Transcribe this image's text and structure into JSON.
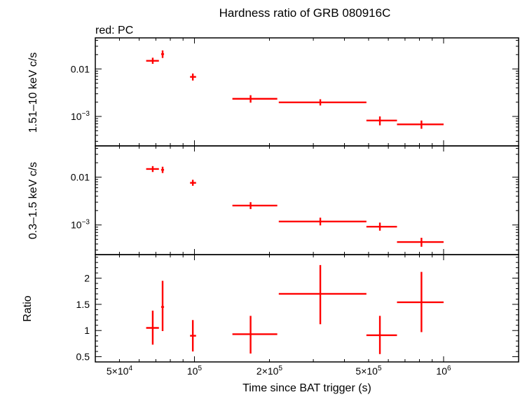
{
  "chart_data": {
    "type": "scatter",
    "title": "Hardness ratio of GRB 080916C",
    "subtitle": "red: PC",
    "xlabel": "Time since BAT trigger (s)",
    "xscale": "log",
    "xlim": [
      40000,
      2000000
    ],
    "x_ticks": [
      {
        "value": 50000,
        "mant": "5×10",
        "exp": "4"
      },
      {
        "value": 100000,
        "mant": "10",
        "exp": "5"
      },
      {
        "value": 200000,
        "mant": "2×10",
        "exp": "5"
      },
      {
        "value": 500000,
        "mant": "5×10",
        "exp": "5"
      },
      {
        "value": 1000000,
        "mant": "10",
        "exp": "6"
      }
    ],
    "panels": [
      {
        "ylabel": "1.51–10 keV c/s",
        "yscale": "log",
        "ylim": [
          0.00024,
          0.045
        ],
        "y_ticks": [
          {
            "value": 0.01,
            "text": "0.01"
          },
          {
            "value": 0.001,
            "mant": "10",
            "exp": "−3"
          }
        ],
        "points": [
          {
            "x": 68000,
            "xlo": 64000,
            "xhi": 72000,
            "y": 0.0148,
            "ylo": 0.0128,
            "yhi": 0.0172
          },
          {
            "x": 74500,
            "xlo": 73500,
            "xhi": 75500,
            "y": 0.0205,
            "ylo": 0.017,
            "yhi": 0.0245
          },
          {
            "x": 98500,
            "xlo": 96000,
            "xhi": 101500,
            "y": 0.0068,
            "ylo": 0.0057,
            "yhi": 0.008
          },
          {
            "x": 168000,
            "xlo": 142000,
            "xhi": 215000,
            "y": 0.00235,
            "ylo": 0.00195,
            "yhi": 0.0028
          },
          {
            "x": 320000,
            "xlo": 218000,
            "xhi": 490000,
            "y": 0.00198,
            "ylo": 0.0017,
            "yhi": 0.0023
          },
          {
            "x": 555000,
            "xlo": 490000,
            "xhi": 650000,
            "y": 0.00082,
            "ylo": 0.00065,
            "yhi": 0.001
          },
          {
            "x": 815000,
            "xlo": 650000,
            "xhi": 1000000,
            "y": 0.00068,
            "ylo": 0.00055,
            "yhi": 0.00082
          }
        ]
      },
      {
        "ylabel": "0.3–1.5 keV c/s",
        "yscale": "log",
        "ylim": [
          0.00024,
          0.045
        ],
        "y_ticks": [
          {
            "value": 0.01,
            "text": "0.01"
          },
          {
            "value": 0.001,
            "mant": "10",
            "exp": "−3"
          }
        ],
        "points": [
          {
            "x": 68000,
            "xlo": 64000,
            "xhi": 72000,
            "y": 0.0148,
            "ylo": 0.0128,
            "yhi": 0.017
          },
          {
            "x": 74500,
            "xlo": 73500,
            "xhi": 75500,
            "y": 0.0142,
            "ylo": 0.0122,
            "yhi": 0.0165
          },
          {
            "x": 98500,
            "xlo": 96000,
            "xhi": 101500,
            "y": 0.0076,
            "ylo": 0.0066,
            "yhi": 0.0088
          },
          {
            "x": 168000,
            "xlo": 142000,
            "xhi": 215000,
            "y": 0.00255,
            "ylo": 0.00215,
            "yhi": 0.003
          },
          {
            "x": 320000,
            "xlo": 218000,
            "xhi": 490000,
            "y": 0.00118,
            "ylo": 0.00098,
            "yhi": 0.00142
          },
          {
            "x": 555000,
            "xlo": 490000,
            "xhi": 650000,
            "y": 0.00092,
            "ylo": 0.00076,
            "yhi": 0.00112
          },
          {
            "x": 815000,
            "xlo": 650000,
            "xhi": 1000000,
            "y": 0.00044,
            "ylo": 0.00035,
            "yhi": 0.00054
          }
        ]
      },
      {
        "ylabel": "Ratio",
        "yscale": "linear",
        "ylim": [
          0.4,
          2.45
        ],
        "y_ticks": [
          {
            "value": 0.5,
            "text": "0.5"
          },
          {
            "value": 1,
            "text": "1"
          },
          {
            "value": 1.5,
            "text": "1.5"
          },
          {
            "value": 2,
            "text": "2"
          }
        ],
        "points": [
          {
            "x": 68000,
            "xlo": 64000,
            "xhi": 72000,
            "y": 1.05,
            "ylo": 0.73,
            "yhi": 1.38
          },
          {
            "x": 74500,
            "xlo": 73500,
            "xhi": 75500,
            "y": 1.45,
            "ylo": 0.99,
            "yhi": 1.95
          },
          {
            "x": 98500,
            "xlo": 96000,
            "xhi": 101500,
            "y": 0.9,
            "ylo": 0.6,
            "yhi": 1.2
          },
          {
            "x": 168000,
            "xlo": 142000,
            "xhi": 215000,
            "y": 0.93,
            "ylo": 0.56,
            "yhi": 1.28
          },
          {
            "x": 320000,
            "xlo": 218000,
            "xhi": 490000,
            "y": 1.7,
            "ylo": 1.12,
            "yhi": 2.25
          },
          {
            "x": 555000,
            "xlo": 490000,
            "xhi": 650000,
            "y": 0.91,
            "ylo": 0.55,
            "yhi": 1.28
          },
          {
            "x": 815000,
            "xlo": 650000,
            "xhi": 1000000,
            "y": 1.54,
            "ylo": 0.97,
            "yhi": 2.12
          }
        ]
      }
    ],
    "colors": {
      "series": "#ff0000",
      "axes": "#000000"
    }
  }
}
